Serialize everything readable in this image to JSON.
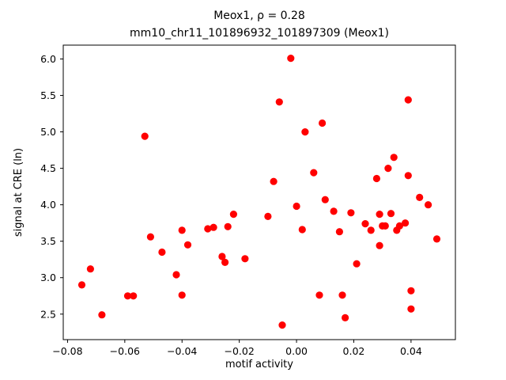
{
  "figure": {
    "title": "Meox1, ρ = 0.28",
    "subtitle": "mm10_chr11_101896932_101897309 (Meox1)"
  },
  "chart_data": {
    "type": "scatter",
    "title": "Meox1, ρ = 0.28",
    "subtitle": "mm10_chr11_101896932_101897309 (Meox1)",
    "xlabel": "motif activity",
    "ylabel": "signal at CRE (ln)",
    "rho": 0.28,
    "xlim": [
      -0.0815,
      0.0555
    ],
    "ylim": [
      2.15,
      6.19
    ],
    "xtick_values": [
      -0.08,
      -0.06,
      -0.04,
      -0.02,
      0.0,
      0.02,
      0.04
    ],
    "xtick_labels": [
      "−0.08",
      "−0.06",
      "−0.04",
      "−0.02",
      "0.00",
      "0.02",
      "0.04"
    ],
    "ytick_values": [
      2.5,
      3.0,
      3.5,
      4.0,
      4.5,
      5.0,
      5.5,
      6.0
    ],
    "ytick_labels": [
      "2.5",
      "3.0",
      "3.5",
      "4.0",
      "4.5",
      "5.0",
      "5.5",
      "6.0"
    ],
    "marker_color": "#ff0000",
    "marker_radius": 4.6,
    "grid": false,
    "legend": "none",
    "points": [
      [
        -0.075,
        2.9
      ],
      [
        -0.072,
        3.12
      ],
      [
        -0.068,
        2.49
      ],
      [
        -0.059,
        2.75
      ],
      [
        -0.057,
        2.75
      ],
      [
        -0.053,
        4.94
      ],
      [
        -0.051,
        3.56
      ],
      [
        -0.047,
        3.35
      ],
      [
        -0.042,
        3.04
      ],
      [
        -0.04,
        3.65
      ],
      [
        -0.04,
        2.76
      ],
      [
        -0.038,
        3.45
      ],
      [
        -0.031,
        3.67
      ],
      [
        -0.029,
        3.69
      ],
      [
        -0.026,
        3.29
      ],
      [
        -0.025,
        3.21
      ],
      [
        -0.024,
        3.7
      ],
      [
        -0.022,
        3.87
      ],
      [
        -0.018,
        3.26
      ],
      [
        -0.01,
        3.84
      ],
      [
        -0.008,
        4.32
      ],
      [
        -0.006,
        5.41
      ],
      [
        -0.005,
        2.35
      ],
      [
        -0.002,
        6.01
      ],
      [
        0.0,
        3.98
      ],
      [
        0.002,
        3.66
      ],
      [
        0.003,
        5.0
      ],
      [
        0.006,
        4.44
      ],
      [
        0.008,
        2.76
      ],
      [
        0.009,
        5.12
      ],
      [
        0.01,
        4.07
      ],
      [
        0.013,
        3.91
      ],
      [
        0.015,
        3.63
      ],
      [
        0.016,
        2.76
      ],
      [
        0.017,
        2.45
      ],
      [
        0.019,
        3.89
      ],
      [
        0.021,
        3.19
      ],
      [
        0.024,
        3.74
      ],
      [
        0.026,
        3.65
      ],
      [
        0.028,
        4.36
      ],
      [
        0.029,
        3.87
      ],
      [
        0.029,
        3.44
      ],
      [
        0.03,
        3.71
      ],
      [
        0.031,
        3.71
      ],
      [
        0.032,
        4.5
      ],
      [
        0.033,
        3.88
      ],
      [
        0.034,
        4.65
      ],
      [
        0.035,
        3.65
      ],
      [
        0.036,
        3.71
      ],
      [
        0.038,
        3.75
      ],
      [
        0.039,
        5.44
      ],
      [
        0.039,
        4.4
      ],
      [
        0.04,
        2.82
      ],
      [
        0.04,
        2.57
      ],
      [
        0.043,
        4.1
      ],
      [
        0.046,
        4.0
      ],
      [
        0.049,
        3.53
      ]
    ]
  }
}
